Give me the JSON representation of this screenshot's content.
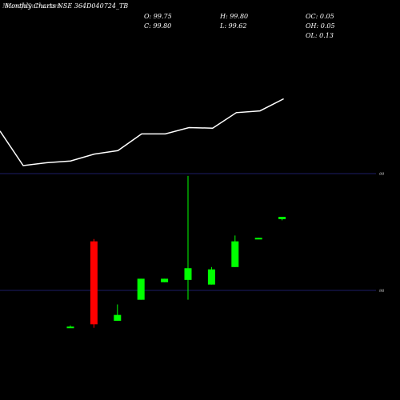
{
  "header": {
    "title_overlap_a": "MunafaSutra.com",
    "title_overlap_b": "Monthly Charts NSE 364D040724_TB"
  },
  "ohlc": {
    "o": "O: 99.75",
    "h": "H: 99.80",
    "c": "C: 99.80",
    "l": "L: 99.62",
    "oc": "OC: 0.05",
    "oh": "OH: 0.05",
    "ol": "OL: 0.13"
  },
  "colors": {
    "background": "#000000",
    "up": "#00ff00",
    "down": "#ff0000",
    "line": "#ffffff",
    "grid": "#1c1c66"
  },
  "chart_data": {
    "type": "candlestick",
    "yticks": [
      "99",
      "98"
    ],
    "line": [
      8,
      2,
      2.5,
      2.8,
      4,
      4.6,
      7.5,
      7.5,
      8.6,
      8.5,
      11.2,
      11.5,
      13.6
    ],
    "candles": [
      {
        "o": 97.68,
        "h": 97.7,
        "c": 97.69,
        "l": 97.68
      },
      {
        "o": 98.42,
        "h": 98.44,
        "c": 97.71,
        "l": 97.68
      },
      {
        "o": 97.74,
        "h": 97.88,
        "c": 97.79,
        "l": 97.74
      },
      {
        "o": 97.92,
        "h": 98.1,
        "c": 98.1,
        "l": 97.92
      },
      {
        "o": 98.07,
        "h": 98.1,
        "c": 98.1,
        "l": 98.07
      },
      {
        "o": 98.09,
        "h": 98.98,
        "c": 98.19,
        "l": 97.92
      },
      {
        "o": 98.05,
        "h": 98.2,
        "c": 98.18,
        "l": 98.05
      },
      {
        "o": 98.2,
        "h": 98.47,
        "c": 98.42,
        "l": 98.2
      },
      {
        "o": 98.44,
        "h": 98.45,
        "c": 98.45,
        "l": 98.44
      },
      {
        "o": 98.61,
        "h": 98.62,
        "c": 98.63,
        "l": 98.6
      }
    ]
  }
}
